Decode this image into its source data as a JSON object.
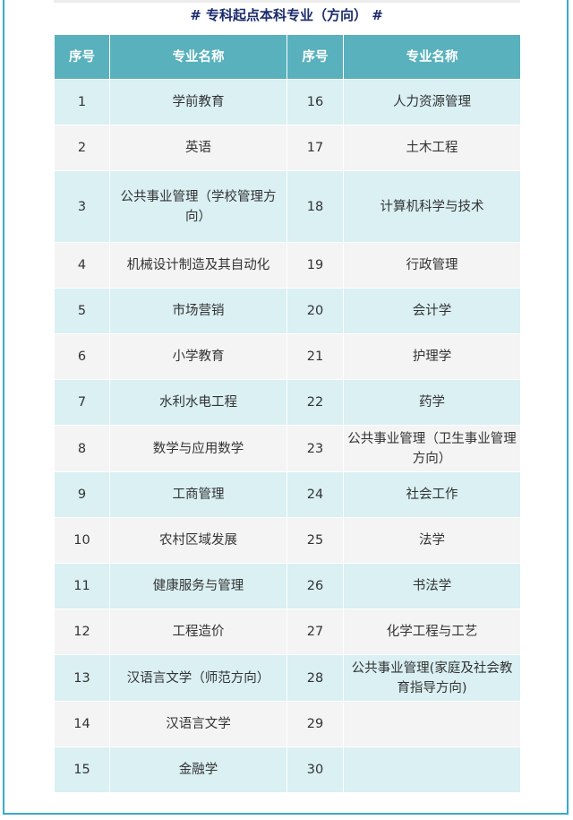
{
  "title": "# 专科起点本科专业（方向） #",
  "colors": {
    "header": "#58b1bc",
    "row_odd": "#daf0f3",
    "row_even": "#f4f4f4",
    "title": "#1a2b6d",
    "frame": "#3aa9c9"
  },
  "table": {
    "headers": [
      "序号",
      "专业名称",
      "序号",
      "专业名称"
    ],
    "rows": [
      [
        "1",
        "学前教育",
        "16",
        "人力资源管理"
      ],
      [
        "2",
        "英语",
        "17",
        "土木工程"
      ],
      [
        "3",
        "公共事业管理（学校管理方向）",
        "18",
        "计算机科学与技术"
      ],
      [
        "4",
        "机械设计制造及其自动化",
        "19",
        "行政管理"
      ],
      [
        "5",
        "市场营销",
        "20",
        "会计学"
      ],
      [
        "6",
        "小学教育",
        "21",
        "护理学"
      ],
      [
        "7",
        "水利水电工程",
        "22",
        "药学"
      ],
      [
        "8",
        "数学与应用数学",
        "23",
        "公共事业管理（卫生事业管理方向）"
      ],
      [
        "9",
        "工商管理",
        "24",
        "社会工作"
      ],
      [
        "10",
        "农村区域发展",
        "25",
        "法学"
      ],
      [
        "11",
        "健康服务与管理",
        "26",
        "书法学"
      ],
      [
        "12",
        "工程造价",
        "27",
        "化学工程与工艺"
      ],
      [
        "13",
        "汉语言文学（师范方向）",
        "28",
        "公共事业管理(家庭及社会教育指导方向)"
      ],
      [
        "14",
        "汉语言文学",
        "29",
        ""
      ],
      [
        "15",
        "金融学",
        "30",
        ""
      ]
    ]
  }
}
